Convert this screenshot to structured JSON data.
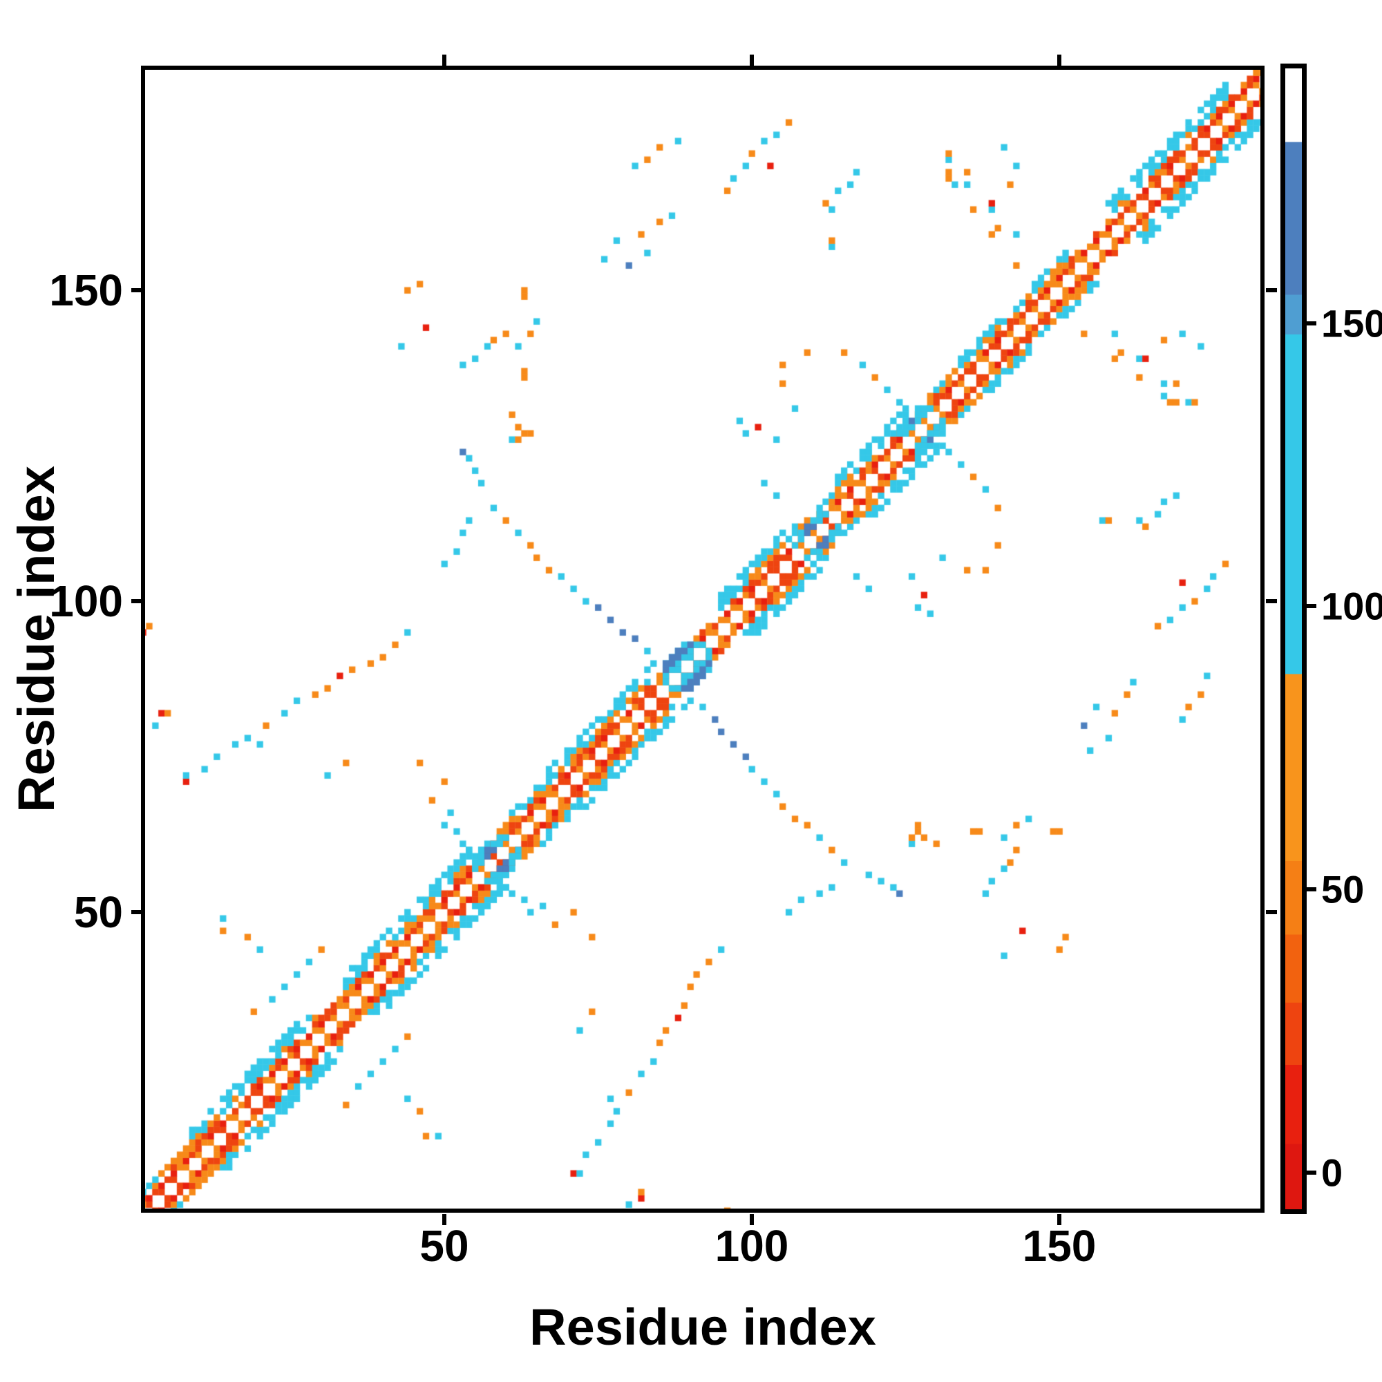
{
  "figure": {
    "background": "#ffffff"
  },
  "chart_data": {
    "type": "heatmap",
    "subtype": "protein-residue-contact-map",
    "title": "",
    "xlabel": "Residue index",
    "ylabel": "Residue index",
    "x_ticks": [
      50,
      100,
      150
    ],
    "y_ticks": [
      50,
      100,
      150
    ],
    "x_range": [
      1,
      186
    ],
    "y_range": [
      1,
      186
    ],
    "n_residues": 186,
    "symmetric": true,
    "grid": false,
    "legend": "none",
    "palette": {
      "red": "#e8200f",
      "redorange": "#ee4410",
      "orange": "#f78a19",
      "cyan": "#35c8e8",
      "steelblue": "#4d7fbe",
      "white": "#ffffff"
    },
    "colorbar": {
      "position": "right",
      "vmin": -6.5,
      "vmax": 195,
      "ticks": [
        0,
        50,
        100,
        150
      ],
      "segments": [
        {
          "v0": 182,
          "v1": 195,
          "color": "#ffffff"
        },
        {
          "v0": 155,
          "v1": 182,
          "color": "#4d7fbe"
        },
        {
          "v0": 148,
          "v1": 155,
          "color": "#4f9ed2"
        },
        {
          "v0": 88,
          "v1": 148,
          "color": "#35c8e8"
        },
        {
          "v0": 55,
          "v1": 88,
          "color": "#f8941c"
        },
        {
          "v0": 42,
          "v1": 55,
          "color": "#f57f15"
        },
        {
          "v0": 30,
          "v1": 42,
          "color": "#f2620f"
        },
        {
          "v0": 19,
          "v1": 30,
          "color": "#ee4410"
        },
        {
          "v0": 5,
          "v1": 19,
          "color": "#e8200f"
        },
        {
          "v0": -6.5,
          "v1": 5,
          "color": "#de1710"
        }
      ]
    },
    "diagonal_band": {
      "description": "near-diagonal contacts; [start,end,max_offset] per segment; offset1-2 red/orange checker, offset3-4 orange, offset5+ cyan, main diagonal white",
      "segments": [
        [
          1,
          8,
          4
        ],
        [
          8,
          30,
          6
        ],
        [
          30,
          34,
          3
        ],
        [
          34,
          55,
          6
        ],
        [
          55,
          61,
          4
        ],
        [
          61,
          67,
          5
        ],
        [
          67,
          84,
          6
        ],
        [
          84,
          95,
          3
        ],
        [
          95,
          108,
          6
        ],
        [
          108,
          114,
          4
        ],
        [
          114,
          126,
          6
        ],
        [
          126,
          131,
          4
        ],
        [
          131,
          141,
          5
        ],
        [
          141,
          146,
          4
        ],
        [
          146,
          152,
          5
        ],
        [
          152,
          158,
          3
        ],
        [
          158,
          178,
          6
        ],
        [
          178,
          186,
          3
        ]
      ]
    },
    "features": {
      "blocks": [
        {
          "name": "beta-hairpin-node-58",
          "cells": [
            [
              55,
              57,
              "cyan"
            ],
            [
              55,
              58,
              "cyan"
            ],
            [
              56,
              58,
              "cyan"
            ],
            [
              56,
              59,
              "cyan"
            ],
            [
              56,
              60,
              "cyan"
            ],
            [
              57,
              59,
              "steelblue"
            ],
            [
              57,
              60,
              "steelblue"
            ],
            [
              58,
              60,
              "steelblue"
            ],
            [
              58,
              61,
              "cyan"
            ],
            [
              59,
              61,
              "cyan"
            ],
            [
              59,
              62,
              "cyan"
            ],
            [
              60,
              62,
              "cyan"
            ]
          ]
        },
        {
          "name": "central-blue-block-86-93",
          "square": [
            86,
            93
          ],
          "halfwidth": 4,
          "base": "cyan",
          "cells": [
            [
              86,
              89,
              "steelblue"
            ],
            [
              86,
              90,
              "steelblue"
            ],
            [
              87,
              90,
              "steelblue"
            ],
            [
              87,
              91,
              "steelblue"
            ],
            [
              88,
              91,
              "steelblue"
            ],
            [
              88,
              92,
              "steelblue"
            ],
            [
              89,
              92,
              "steelblue"
            ],
            [
              90,
              93,
              "steelblue"
            ]
          ]
        },
        {
          "name": "node-110",
          "cells": [
            [
              107,
              109,
              "cyan"
            ],
            [
              108,
              110,
              "cyan"
            ],
            [
              108,
              111,
              "cyan"
            ],
            [
              109,
              111,
              "steelblue"
            ],
            [
              109,
              112,
              "steelblue"
            ],
            [
              110,
              112,
              "steelblue"
            ],
            [
              110,
              113,
              "cyan"
            ],
            [
              111,
              113,
              "cyan"
            ],
            [
              111,
              114,
              "cyan"
            ],
            [
              112,
              114,
              "cyan"
            ]
          ]
        },
        {
          "name": "node-128",
          "cells": [
            [
              124,
              127,
              "cyan"
            ],
            [
              125,
              127,
              "cyan"
            ],
            [
              125,
              128,
              "cyan"
            ],
            [
              126,
              128,
              "cyan"
            ],
            [
              126,
              129,
              "steelblue"
            ],
            [
              127,
              129,
              "cyan"
            ],
            [
              127,
              130,
              "cyan"
            ],
            [
              128,
              130,
              "cyan"
            ],
            [
              128,
              131,
              "cyan"
            ],
            [
              129,
              131,
              "cyan"
            ]
          ]
        }
      ],
      "contacts": [
        [
          1,
          95,
          "red"
        ],
        [
          2,
          96,
          "orange"
        ],
        [
          3,
          80,
          "cyan"
        ],
        [
          4,
          82,
          "red"
        ],
        [
          5,
          82,
          "orange"
        ],
        [
          8,
          71,
          "red"
        ],
        [
          8,
          72,
          "cyan"
        ],
        [
          11,
          73,
          "cyan"
        ],
        [
          13,
          75,
          "cyan"
        ],
        [
          16,
          77,
          "cyan"
        ],
        [
          18,
          78,
          "cyan"
        ],
        [
          20,
          77,
          "cyan"
        ],
        [
          21,
          80,
          "orange"
        ],
        [
          24,
          82,
          "cyan"
        ],
        [
          26,
          84,
          "cyan"
        ],
        [
          29,
          85,
          "orange"
        ],
        [
          31,
          86,
          "orange"
        ],
        [
          33,
          88,
          "red"
        ],
        [
          35,
          89,
          "orange"
        ],
        [
          38,
          90,
          "orange"
        ],
        [
          40,
          91,
          "orange"
        ],
        [
          42,
          93,
          "orange"
        ],
        [
          44,
          95,
          "cyan"
        ],
        [
          19,
          34,
          "orange"
        ],
        [
          22,
          36,
          "cyan"
        ],
        [
          24,
          38,
          "cyan"
        ],
        [
          26,
          40,
          "cyan"
        ],
        [
          28,
          42,
          "cyan"
        ],
        [
          20,
          44,
          "cyan"
        ],
        [
          18,
          46,
          "orange"
        ],
        [
          30,
          44,
          "orange"
        ],
        [
          31,
          72,
          "cyan"
        ],
        [
          34,
          74,
          "orange"
        ],
        [
          14,
          47,
          "orange"
        ],
        [
          14,
          49,
          "cyan"
        ],
        [
          50,
          64,
          "cyan"
        ],
        [
          52,
          63,
          "cyan"
        ],
        [
          53,
          61,
          "cyan"
        ],
        [
          54,
          60,
          "cyan"
        ],
        [
          51,
          66,
          "cyan"
        ],
        [
          48,
          68,
          "orange"
        ],
        [
          46,
          74,
          "orange"
        ],
        [
          50,
          71,
          "orange"
        ],
        [
          58,
          115,
          "cyan"
        ],
        [
          60,
          113,
          "orange"
        ],
        [
          62,
          111,
          "cyan"
        ],
        [
          64,
          109,
          "orange"
        ],
        [
          65,
          107,
          "orange"
        ],
        [
          67,
          105,
          "orange"
        ],
        [
          69,
          104,
          "cyan"
        ],
        [
          71,
          102,
          "cyan"
        ],
        [
          73,
          100,
          "cyan"
        ],
        [
          75,
          99,
          "steelblue"
        ],
        [
          77,
          97,
          "steelblue"
        ],
        [
          79,
          95,
          "steelblue"
        ],
        [
          81,
          94,
          "steelblue"
        ],
        [
          83,
          92,
          "cyan"
        ],
        [
          84,
          90,
          "cyan"
        ],
        [
          56,
          119,
          "cyan"
        ],
        [
          55,
          121,
          "cyan"
        ],
        [
          53,
          124,
          "steelblue"
        ],
        [
          54,
          123,
          "cyan"
        ],
        [
          50,
          106,
          "cyan"
        ],
        [
          52,
          108,
          "cyan"
        ],
        [
          53,
          111,
          "cyan"
        ],
        [
          54,
          113,
          "cyan"
        ],
        [
          61,
          126,
          "cyan"
        ],
        [
          62,
          126,
          "orange"
        ],
        [
          63,
          127,
          "orange"
        ],
        [
          64,
          127,
          "orange"
        ],
        [
          62,
          128,
          "orange"
        ],
        [
          61,
          130,
          "orange"
        ],
        [
          63,
          136,
          "orange"
        ],
        [
          63,
          137,
          "orange"
        ],
        [
          44,
          150,
          "orange"
        ],
        [
          46,
          151,
          "orange"
        ],
        [
          47,
          144,
          "red"
        ],
        [
          43,
          141,
          "cyan"
        ],
        [
          53,
          138,
          "cyan"
        ],
        [
          55,
          139,
          "cyan"
        ],
        [
          57,
          141,
          "cyan"
        ],
        [
          58,
          142,
          "orange"
        ],
        [
          60,
          143,
          "orange"
        ],
        [
          62,
          141,
          "cyan"
        ],
        [
          64,
          143,
          "orange"
        ],
        [
          65,
          145,
          "cyan"
        ],
        [
          63,
          149,
          "orange"
        ],
        [
          63,
          150,
          "orange"
        ],
        [
          104,
          117,
          "cyan"
        ],
        [
          102,
          119,
          "cyan"
        ],
        [
          120,
          136,
          "orange"
        ],
        [
          122,
          134,
          "cyan"
        ],
        [
          124,
          132,
          "cyan"
        ],
        [
          118,
          138,
          "cyan"
        ],
        [
          81,
          170,
          "cyan"
        ],
        [
          83,
          171,
          "orange"
        ],
        [
          85,
          173,
          "orange"
        ],
        [
          88,
          174,
          "cyan"
        ],
        [
          96,
          166,
          "orange"
        ],
        [
          97,
          168,
          "cyan"
        ],
        [
          99,
          170,
          "cyan"
        ],
        [
          100,
          172,
          "orange"
        ],
        [
          102,
          174,
          "cyan"
        ],
        [
          104,
          175,
          "cyan"
        ],
        [
          106,
          177,
          "orange"
        ],
        [
          103,
          170,
          "red"
        ],
        [
          104,
          126,
          "cyan"
        ],
        [
          101,
          128,
          "red"
        ],
        [
          99,
          127,
          "cyan"
        ],
        [
          98,
          129,
          "cyan"
        ],
        [
          107,
          131,
          "cyan"
        ],
        [
          105,
          135,
          "orange"
        ],
        [
          105,
          138,
          "orange"
        ],
        [
          109,
          140,
          "orange"
        ],
        [
          115,
          140,
          "orange"
        ],
        [
          76,
          155,
          "cyan"
        ],
        [
          78,
          158,
          "cyan"
        ],
        [
          80,
          154,
          "steelblue"
        ],
        [
          82,
          159,
          "orange"
        ],
        [
          83,
          156,
          "cyan"
        ],
        [
          85,
          161,
          "orange"
        ],
        [
          87,
          162,
          "cyan"
        ],
        [
          112,
          164,
          "orange"
        ],
        [
          113,
          157,
          "cyan"
        ],
        [
          113,
          158,
          "orange"
        ],
        [
          113,
          163,
          "cyan"
        ],
        [
          114,
          166,
          "cyan"
        ],
        [
          116,
          167,
          "cyan"
        ],
        [
          117,
          169,
          "cyan"
        ],
        [
          132,
          168,
          "orange"
        ],
        [
          132,
          169,
          "orange"
        ],
        [
          132,
          171,
          "cyan"
        ],
        [
          132,
          172,
          "orange"
        ],
        [
          133,
          167,
          "cyan"
        ],
        [
          135,
          167,
          "cyan"
        ],
        [
          135,
          169,
          "orange"
        ],
        [
          136,
          163,
          "orange"
        ],
        [
          139,
          163,
          "cyan"
        ],
        [
          139,
          164,
          "red"
        ],
        [
          139,
          159,
          "orange"
        ],
        [
          140,
          160,
          "orange"
        ],
        [
          143,
          159,
          "cyan"
        ],
        [
          143,
          154,
          "orange"
        ],
        [
          141,
          173,
          "cyan"
        ],
        [
          143,
          170,
          "cyan"
        ],
        [
          142,
          167,
          "orange"
        ]
      ]
    }
  }
}
